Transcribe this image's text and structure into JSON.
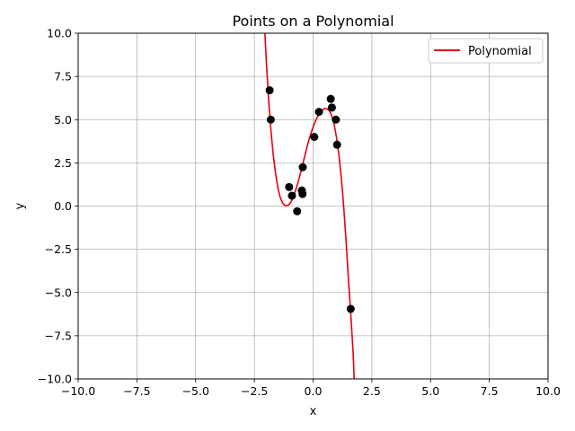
{
  "chart_data": {
    "type": "scatter",
    "title": "Points on a Polynomial",
    "xlabel": "x",
    "ylabel": "y",
    "xlim": [
      -10,
      10
    ],
    "ylim": [
      -10,
      10
    ],
    "grid": true,
    "legend_position": "top-right",
    "x_ticks": [
      -10,
      -7.5,
      -5,
      -2.5,
      0,
      2.5,
      5,
      7.5,
      10
    ],
    "y_ticks": [
      -10,
      -7.5,
      -5,
      -2.5,
      0,
      2.5,
      5,
      7.5,
      10
    ],
    "x_tick_labels": [
      "−10.0",
      "−7.5",
      "−5.0",
      "−2.5",
      "0.0",
      "2.5",
      "5.0",
      "7.5",
      "10.0"
    ],
    "y_tick_labels": [
      "−10.0",
      "−7.5",
      "−5.0",
      "−2.5",
      "0.0",
      "2.5",
      "5.0",
      "7.5",
      "10.0"
    ],
    "series": [
      {
        "name": "Polynomial",
        "kind": "line",
        "color": "#e8000b",
        "x": [
          -2.05,
          -2.0,
          -1.95,
          -1.9,
          -1.85,
          -1.8,
          -1.7,
          -1.6,
          -1.5,
          -1.4,
          -1.3,
          -1.2,
          -1.1,
          -1.0,
          -0.9,
          -0.8,
          -0.7,
          -0.6,
          -0.5,
          -0.4,
          -0.3,
          -0.2,
          -0.1,
          0.0,
          0.1,
          0.2,
          0.3,
          0.4,
          0.5,
          0.6,
          0.7,
          0.8,
          0.9,
          1.0,
          1.1,
          1.2,
          1.3,
          1.4,
          1.5,
          1.6,
          1.7,
          1.75
        ],
        "y": [
          10.0,
          8.6,
          7.4,
          6.3,
          5.35,
          4.45,
          3.0,
          1.9,
          1.05,
          0.5,
          0.18,
          0.03,
          0.02,
          0.12,
          0.35,
          0.68,
          1.1,
          1.58,
          2.1,
          2.65,
          3.2,
          3.72,
          4.18,
          4.58,
          4.92,
          5.2,
          5.42,
          5.57,
          5.65,
          5.63,
          5.5,
          5.2,
          4.7,
          3.95,
          2.95,
          1.65,
          0.0,
          -1.95,
          -4.15,
          -6.2,
          -8.4,
          -10.0
        ]
      },
      {
        "name": "",
        "kind": "scatter",
        "color": "#000000",
        "x": [
          -1.85,
          -1.8,
          -1.02,
          -0.9,
          -0.68,
          -0.48,
          -0.45,
          -0.44,
          0.05,
          0.25,
          0.75,
          0.8,
          0.97,
          1.02,
          1.6
        ],
        "y": [
          6.7,
          5.0,
          1.1,
          0.6,
          -0.3,
          0.9,
          0.7,
          2.25,
          4.0,
          5.45,
          6.2,
          5.7,
          5.0,
          3.55,
          -5.95
        ]
      }
    ],
    "legend": [
      {
        "label": "Polynomial",
        "color": "#e8000b"
      }
    ]
  }
}
